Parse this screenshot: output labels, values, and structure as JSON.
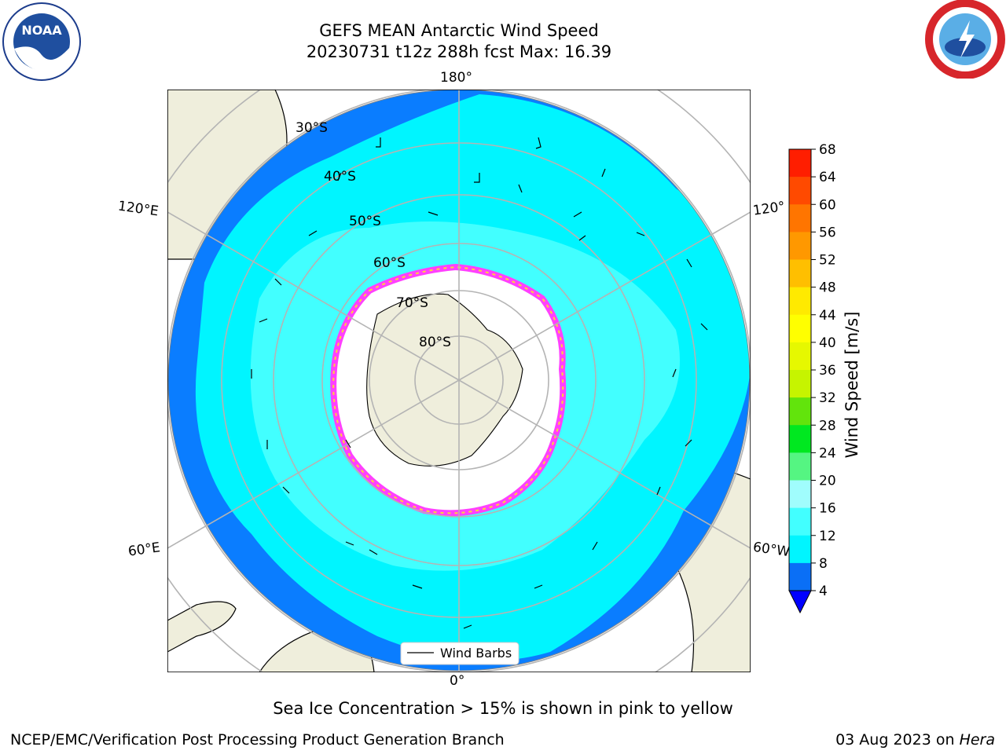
{
  "header": {
    "title_line1": "GEFS MEAN Antarctic Wind Speed",
    "title_line2": "20230731 t12z 288h fcst   Max: 16.39"
  },
  "logos": {
    "left_icon": "noaa-logo",
    "left_text": "NOAA",
    "right_icon": "national-weather-service-logo"
  },
  "map": {
    "projection": "south-polar-stereographic",
    "longitude_labels": {
      "top": "180°",
      "bottom": "0°",
      "upper_left": "120°E",
      "lower_left": "60°E",
      "upper_right": "120°",
      "lower_right": "60°W"
    },
    "latitude_labels": [
      "30°S",
      "40°S",
      "50°S",
      "60°S",
      "70°S",
      "80°S"
    ],
    "legend_label": "Wind Barbs",
    "colors": {
      "land": "#efeedc",
      "ocean_low": "#0a7dff",
      "ocean_mid": "#00f5ff",
      "ocean_high": "#4cffff",
      "sea_ice_pink": "#ff40ff",
      "sea_ice_yellow": "#ffd23a",
      "grid": "#b4b4b4"
    }
  },
  "colorbar": {
    "label": "Wind Speed [m/s]",
    "ticks": [
      "4",
      "8",
      "12",
      "16",
      "20",
      "24",
      "28",
      "32",
      "36",
      "40",
      "44",
      "48",
      "52",
      "56",
      "60",
      "64",
      "68"
    ],
    "colors": [
      "#0a6ff6",
      "#00f5ff",
      "#42ffff",
      "#a0fdfd",
      "#55f582",
      "#00e820",
      "#62e40c",
      "#c6f400",
      "#e6f800",
      "#ffff00",
      "#ffea00",
      "#ffbf00",
      "#ff9800",
      "#ff7500",
      "#ff4a00",
      "#ff1e00"
    ],
    "extend_color": "#0000ff"
  },
  "footer": {
    "caption": "Sea Ice Concentration > 15% is shown in pink to yellow",
    "credit": "NCEP/EMC/Verification Post Processing Product Generation Branch",
    "date": "03 Aug 2023 on",
    "machine": "Hera"
  }
}
